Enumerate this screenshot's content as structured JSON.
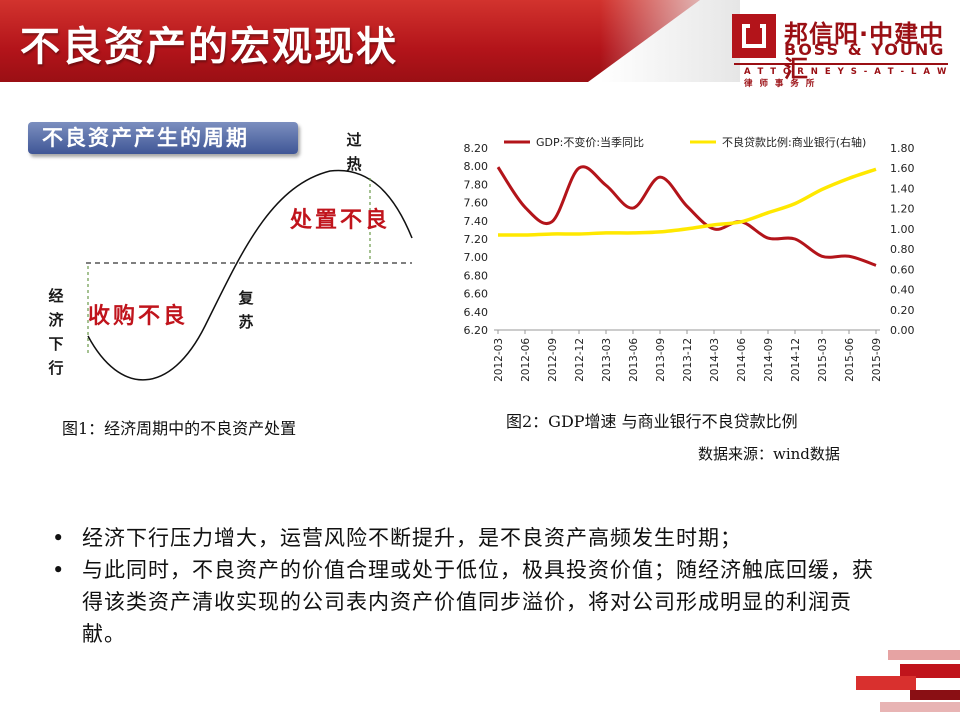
{
  "header": {
    "title": "不良资产的宏观现状",
    "logo_cn": "邦信阳·中建中汇",
    "logo_en": "BOSS & YOUNG",
    "tagline": "A T T O R N E Y S - A T - L A W   律 师 事 务 所"
  },
  "left_figure": {
    "label": "不良资产产生的周期",
    "phases": {
      "downturn": [
        "经",
        "济",
        "下",
        "行"
      ],
      "recovery": [
        "复",
        "苏"
      ],
      "overheat": [
        "过",
        "热"
      ]
    },
    "actions": {
      "acquire": "收购不良",
      "dispose": "处置不良"
    },
    "caption": "图1：经济周期中的不良资产处置"
  },
  "chart_data": {
    "type": "line",
    "x": [
      "2012-03",
      "2012-06",
      "2012-09",
      "2012-12",
      "2013-03",
      "2013-06",
      "2013-09",
      "2013-12",
      "2014-03",
      "2014-06",
      "2014-09",
      "2014-12",
      "2015-03",
      "2015-06",
      "2015-09"
    ],
    "series": [
      {
        "name": "GDP:不变价:当季同比",
        "axis": "left",
        "color": "#b3141a",
        "values": [
          7.99,
          7.55,
          7.39,
          7.98,
          7.79,
          7.54,
          7.88,
          7.56,
          7.31,
          7.39,
          7.21,
          7.2,
          7.01,
          7.01,
          6.91
        ]
      },
      {
        "name": "不良贷款比例:商业银行(右轴)",
        "axis": "right",
        "color": "#ffe800",
        "values": [
          0.94,
          0.94,
          0.95,
          0.95,
          0.96,
          0.96,
          0.97,
          1.0,
          1.04,
          1.07,
          1.16,
          1.25,
          1.39,
          1.5,
          1.59
        ]
      }
    ],
    "y_left": {
      "min": 6.2,
      "max": 8.2,
      "ticks": [
        "8.20",
        "8.00",
        "7.80",
        "7.60",
        "7.40",
        "7.20",
        "7.00",
        "6.80",
        "6.60",
        "6.40",
        "6.20"
      ]
    },
    "y_right": {
      "min": 0.0,
      "max": 1.8,
      "ticks": [
        "1.80",
        "1.60",
        "1.40",
        "1.20",
        "1.00",
        "0.80",
        "0.60",
        "0.40",
        "0.20",
        "0.00"
      ]
    },
    "grid": false,
    "legend": "top",
    "caption": "图2：GDP增速 与商业银行不良贷款比例",
    "source": "数据来源：wind数据"
  },
  "bullets": [
    "经济下行压力增大，运营风险不断提升，是不良资产高频发生时期；",
    "与此同时，不良资产的价值合理或处于低位，极具投资价值；随经济触底回缓，获得该类资产清收实现的公司表内资产价值同步溢价，将对公司形成明显的利润贡献。"
  ],
  "bullet_symbol": "•"
}
